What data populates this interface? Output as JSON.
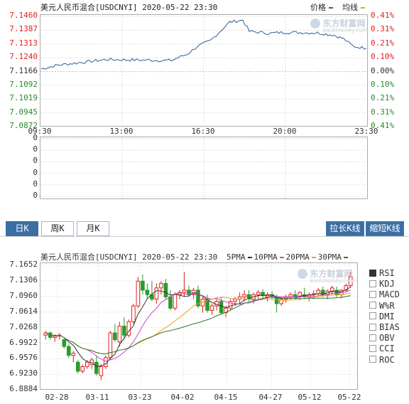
{
  "intraday": {
    "title": "美元人民币混合[USDCNYI] 2020-05-22 23:30",
    "legend": [
      {
        "label": "价格",
        "color": "#2a5d9a"
      },
      {
        "label": "均线",
        "color": "#e8a020"
      }
    ],
    "y_left": [
      "7.1460",
      "7.1387",
      "7.1313",
      "7.1240",
      "7.1166",
      "7.1092",
      "7.1019",
      "7.0945",
      "7.0872"
    ],
    "y_right": [
      "0.41%",
      "0.31%",
      "0.21%",
      "0.10%",
      "0.00%",
      "0.10%",
      "0.21%",
      "0.31%",
      "0.41%"
    ],
    "colors": {
      "up": "#e02020",
      "flat": "#333333",
      "down": "#2a8a2a",
      "line": "#2a5d9a",
      "grid": "#dddddd"
    },
    "x_labels": [
      "09:30",
      "13:00",
      "16:30",
      "20:00",
      "23:30"
    ],
    "volume_labels": [
      "0",
      "0",
      "0",
      "0",
      "0",
      "0"
    ]
  },
  "watermark": {
    "cn": "东方财富网",
    "en": "eastmoney.com"
  },
  "period_tabs": [
    {
      "label": "日K",
      "active": true
    },
    {
      "label": "周K",
      "active": false
    },
    {
      "label": "月K",
      "active": false
    }
  ],
  "zoom_buttons": {
    "stretch": "拉长K线",
    "shrink": "缩短K线"
  },
  "kline": {
    "title": "美元人民币混合[USDCNYI] 2020-05-22 23:30",
    "ma_legend": [
      {
        "label": "5PMA",
        "color": "#333333"
      },
      {
        "label": "10PMA",
        "color": "#cc44cc"
      },
      {
        "label": "20PMA",
        "color": "#e8a020"
      },
      {
        "label": "30PMA",
        "color": "#2a7a2a"
      }
    ],
    "y_labels": [
      "7.1652",
      "7.1306",
      "7.0960",
      "7.0614",
      "7.0268",
      "6.9922",
      "6.9576",
      "6.9230",
      "6.8884"
    ],
    "x_labels": [
      "02-28",
      "03-11",
      "03-23",
      "04-02",
      "04-15",
      "04-27",
      "05-12",
      "05-22"
    ],
    "colors": {
      "up": "#e02020",
      "down": "#2a9a2a"
    },
    "indicators": [
      {
        "label": "RSI",
        "checked": true
      },
      {
        "label": "KDJ",
        "checked": false
      },
      {
        "label": "MACD",
        "checked": false
      },
      {
        "label": "W%R",
        "checked": false
      },
      {
        "label": "DMI",
        "checked": false
      },
      {
        "label": "BIAS",
        "checked": false
      },
      {
        "label": "OBV",
        "checked": false
      },
      {
        "label": "CCI",
        "checked": false
      },
      {
        "label": "ROC",
        "checked": false
      }
    ]
  },
  "chart_data": [
    {
      "type": "line",
      "title": "美元人民币混合[USDCNYI] 2020-05-22 23:30",
      "x": [
        "09:30",
        "13:00",
        "16:30",
        "20:00",
        "23:30"
      ],
      "series": [
        {
          "name": "价格",
          "values": [
            7.118,
            7.1215,
            7.142,
            7.134,
            7.1285
          ]
        }
      ],
      "ylim": [
        7.0872,
        7.146
      ]
    },
    {
      "type": "candlestick",
      "title": "美元人民币混合[USDCNYI] 2020-05-22 23:30",
      "categories": [
        "02-28",
        "03-11",
        "03-23",
        "04-02",
        "04-15",
        "04-27",
        "05-12",
        "05-22"
      ],
      "ohlc": [
        [
          7.01,
          7.02,
          7.0,
          7.015
        ],
        [
          7.015,
          7.018,
          7.0,
          7.005
        ],
        [
          7.005,
          7.012,
          6.995,
          7.008
        ],
        [
          7.008,
          7.015,
          7.0,
          7.01
        ],
        [
          7.0,
          7.002,
          6.98,
          6.985
        ],
        [
          6.985,
          6.99,
          6.96,
          6.965
        ],
        [
          6.965,
          6.975,
          6.95,
          6.97
        ],
        [
          6.95,
          6.955,
          6.925,
          6.93
        ],
        [
          6.93,
          6.945,
          6.925,
          6.94
        ],
        [
          6.94,
          6.955,
          6.935,
          6.95
        ],
        [
          6.945,
          6.96,
          6.935,
          6.955
        ],
        [
          6.95,
          6.965,
          6.92,
          6.925
        ],
        [
          6.92,
          6.945,
          6.91,
          6.94
        ],
        [
          6.94,
          6.965,
          6.935,
          6.96
        ],
        [
          6.96,
          7.02,
          6.955,
          7.015
        ],
        [
          7.015,
          7.035,
          6.995,
          7.0
        ],
        [
          6.995,
          7.04,
          6.985,
          7.03
        ],
        [
          7.03,
          7.05,
          7.0,
          7.01
        ],
        [
          7.01,
          7.045,
          7.005,
          7.04
        ],
        [
          7.04,
          7.08,
          7.035,
          7.075
        ],
        [
          7.075,
          7.14,
          7.07,
          7.13
        ],
        [
          7.13,
          7.145,
          7.1,
          7.11
        ],
        [
          7.11,
          7.125,
          7.09,
          7.1
        ],
        [
          7.1,
          7.13,
          7.085,
          7.09
        ],
        [
          7.09,
          7.125,
          7.08,
          7.115
        ],
        [
          7.115,
          7.13,
          7.1,
          7.125
        ],
        [
          7.125,
          7.135,
          7.09,
          7.095
        ],
        [
          7.095,
          7.11,
          7.065,
          7.07
        ],
        [
          7.07,
          7.105,
          7.065,
          7.1
        ],
        [
          7.1,
          7.11,
          7.09,
          7.105
        ],
        [
          7.105,
          7.15,
          7.095,
          7.11
        ],
        [
          7.11,
          7.12,
          7.095,
          7.1
        ],
        [
          7.1,
          7.115,
          7.09,
          7.11
        ],
        [
          7.11,
          7.12,
          7.07,
          7.075
        ],
        [
          7.075,
          7.095,
          7.06,
          7.09
        ],
        [
          7.09,
          7.1,
          7.06,
          7.065
        ],
        [
          7.065,
          7.08,
          7.055,
          7.075
        ],
        [
          7.075,
          7.09,
          7.065,
          7.085
        ],
        [
          7.085,
          7.095,
          7.055,
          7.06
        ],
        [
          7.06,
          7.075,
          7.05,
          7.07
        ],
        [
          7.07,
          7.09,
          7.065,
          7.085
        ],
        [
          7.085,
          7.095,
          7.075,
          7.09
        ],
        [
          7.09,
          7.105,
          7.08,
          7.095
        ],
        [
          7.095,
          7.11,
          7.085,
          7.1
        ],
        [
          7.1,
          7.11,
          7.085,
          7.09
        ],
        [
          7.09,
          7.105,
          7.08,
          7.1
        ],
        [
          7.1,
          7.11,
          7.09,
          7.105
        ],
        [
          7.105,
          7.112,
          7.092,
          7.098
        ],
        [
          7.095,
          7.105,
          7.085,
          7.1
        ],
        [
          7.1,
          7.108,
          7.09,
          7.095
        ],
        [
          7.095,
          7.1,
          7.06,
          7.08
        ],
        [
          7.08,
          7.095,
          7.075,
          7.09
        ],
        [
          7.09,
          7.1,
          7.082,
          7.095
        ],
        [
          7.095,
          7.105,
          7.088,
          7.1
        ],
        [
          7.1,
          7.11,
          7.09,
          7.095
        ],
        [
          7.095,
          7.108,
          7.088,
          7.105
        ],
        [
          7.1,
          7.115,
          7.092,
          7.095
        ],
        [
          7.095,
          7.105,
          7.085,
          7.1
        ],
        [
          7.1,
          7.11,
          7.09,
          7.102
        ],
        [
          7.102,
          7.115,
          7.095,
          7.11
        ],
        [
          7.11,
          7.118,
          7.095,
          7.1
        ],
        [
          7.1,
          7.112,
          7.09,
          7.108
        ],
        [
          7.108,
          7.12,
          7.1,
          7.115
        ],
        [
          7.11,
          7.118,
          7.095,
          7.1
        ],
        [
          7.1,
          7.112,
          7.092,
          7.11
        ],
        [
          7.11,
          7.125,
          7.105,
          7.12
        ],
        [
          7.12,
          7.15,
          7.115,
          7.14
        ]
      ],
      "ylim": [
        6.8884,
        7.1652
      ]
    }
  ]
}
